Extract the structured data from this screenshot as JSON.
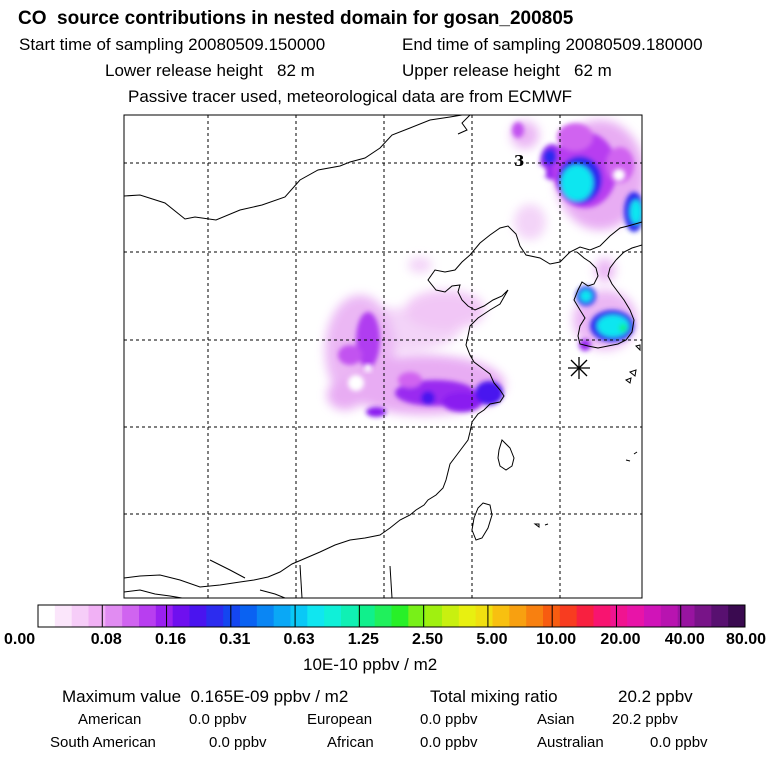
{
  "header": {
    "title": "CO  source contributions in nested domain for gosan_200805",
    "start_label": "Start time of sampling 20080509.150000",
    "end_label": "End time of sampling 20080509.180000",
    "lower_label": "Lower release height   82 m",
    "upper_label": "Upper release height   62 m",
    "tracer_label": "Passive tracer used, meteorological data are from ECMWF"
  },
  "map": {
    "contour_label": "3",
    "station_marker": "asterisk-station"
  },
  "colorbar": {
    "ticks": [
      "0.00",
      "0.08",
      "0.16",
      "0.31",
      "0.63",
      "1.25",
      "2.50",
      "5.00",
      "10.00",
      "20.00",
      "40.00",
      "80.00"
    ],
    "unit": "10E-10 ppbv / m2",
    "colors": [
      "#ffffff",
      "#fbe6fb",
      "#f6cdf8",
      "#f1b1f5",
      "#e18cf2",
      "#d064f0",
      "#b83ef0",
      "#9a20f0",
      "#6f10ef",
      "#4a14ef",
      "#2c2cef",
      "#1446f0",
      "#0a62f2",
      "#0a86f4",
      "#0aa8f6",
      "#0ac8f6",
      "#10e6f0",
      "#10f0d8",
      "#10f0b4",
      "#10f08c",
      "#20f05c",
      "#28f028",
      "#78f018",
      "#a0f010",
      "#c8f010",
      "#e8f010",
      "#f0e010",
      "#f8c010",
      "#f8a010",
      "#f88010",
      "#f85c10",
      "#f83c20",
      "#f82040",
      "#f81470",
      "#f01490",
      "#e814a8",
      "#d014b8",
      "#b814b0",
      "#9814a0",
      "#781488",
      "#581070",
      "#3a0a50"
    ]
  },
  "footer": {
    "max_label": "Maximum value  0.165E-09 ppbv / m2",
    "total_label": "Total mixing ratio",
    "total_value": "20.2 ppbv",
    "rows": [
      [
        {
          "label": "American",
          "value": "0.0 ppbv"
        },
        {
          "label": "European",
          "value": "0.0 ppbv"
        },
        {
          "label": "Asian",
          "value": "20.2 ppbv"
        }
      ],
      [
        {
          "label": "South American",
          "value": "0.0 ppbv"
        },
        {
          "label": "African",
          "value": "0.0 ppbv"
        },
        {
          "label": "Australian",
          "value": "0.0 ppbv"
        }
      ]
    ]
  }
}
